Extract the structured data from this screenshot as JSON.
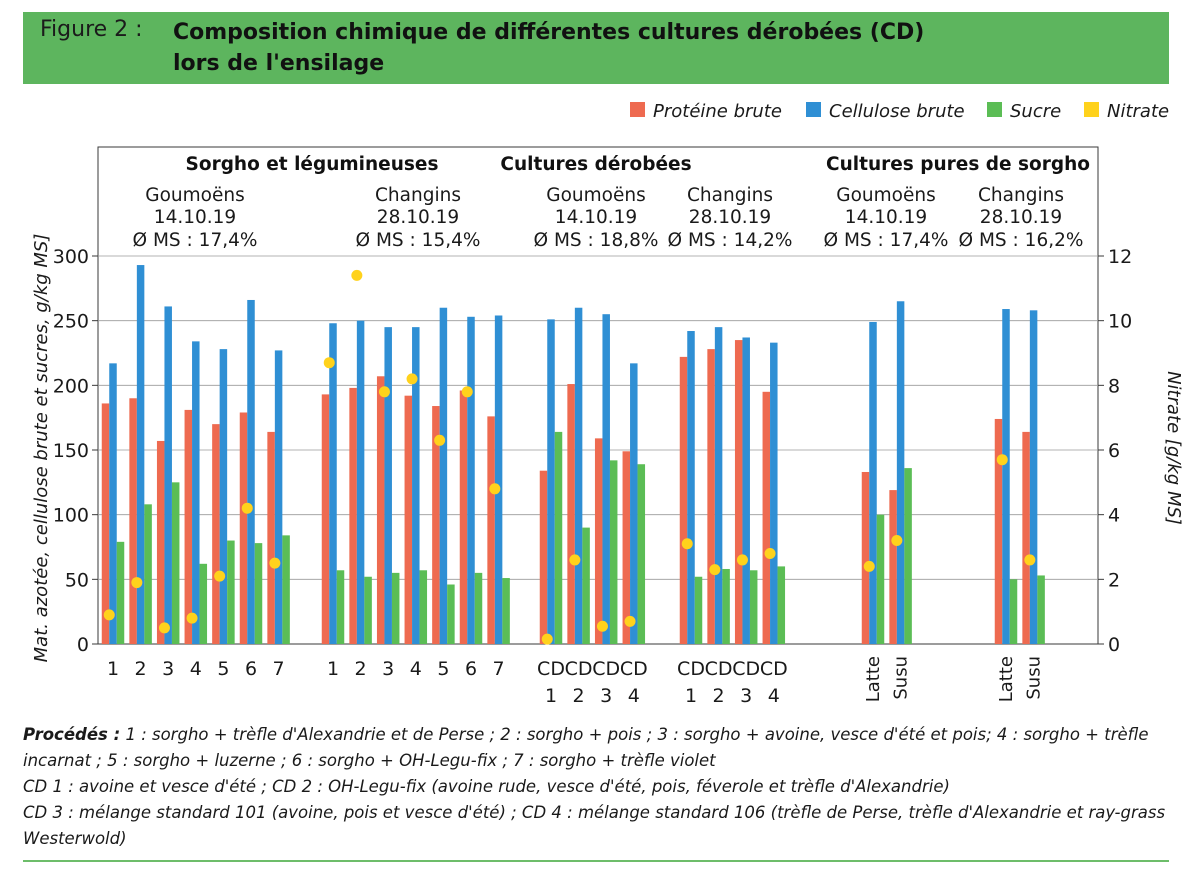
{
  "header": {
    "figure_label": "Figure 2 :",
    "title_line1": "Composition chimique de différentes cultures dérobées (CD)",
    "title_line2": "lors de l'ensilage"
  },
  "notes": {
    "procedes_label": "Procédés :",
    "procedes_text": " 1 : sorgho + trèfle d'Alexandrie et de Perse ; 2 : sorgho + pois ; 3 : sorgho + avoine, vesce d'été et pois; 4 : sorgho + trèfle incarnat ; 5 : sorgho + luzerne ; 6 : sorgho + OH-Legu-fix ; 7 : sorgho + trèfle violet",
    "cd_line1": "CD 1 : avoine et vesce d'été ; CD 2 : OH-Legu-fix (avoine rude, vesce d'été, pois, féverole et trèfle d'Alexandrie)",
    "cd_line2": "CD 3 : mélange standard 101 (avoine, pois et vesce d'été) ; CD 4 : mélange standard 106 (trèfle de Perse, trèfle d'Alexandrie et ray-grass Westerwold)"
  },
  "chart_data": {
    "type": "bar",
    "ylabel": "Mat. azotée, cellulose brute et sucres, g/kg MS]",
    "y2label": "Nitrate [g/kg MS]",
    "ylim": [
      0,
      300
    ],
    "yticks": [
      0,
      50,
      100,
      150,
      200,
      250,
      300
    ],
    "y2lim": [
      0,
      12
    ],
    "y2ticks": [
      0,
      2,
      4,
      6,
      8,
      10,
      12
    ],
    "grid": true,
    "legend_position": "top-right",
    "series": [
      {
        "name": "Protéine brute",
        "color": "#ee6a50"
      },
      {
        "name": "Cellulose brute",
        "color": "#2f8fd4"
      },
      {
        "name": "Sucre",
        "color": "#5bbd55"
      },
      {
        "name": "Nitrate",
        "color": "#ffd21c"
      }
    ],
    "section_titles": [
      "Sorgho et légumineuses",
      "Cultures dérobées",
      "Cultures pures de sorgho"
    ],
    "groups": [
      {
        "site": "Goumoëns",
        "date": "14.10.19",
        "ms": "Ø MS : 17,4%",
        "categories": [
          "1",
          "2",
          "3",
          "4",
          "5",
          "6",
          "7"
        ],
        "proteine": [
          186,
          190,
          157,
          181,
          170,
          179,
          164
        ],
        "cellulose": [
          217,
          293,
          261,
          234,
          228,
          266,
          227
        ],
        "sucre": [
          79,
          108,
          125,
          62,
          80,
          78,
          84
        ],
        "nitrate": [
          0.9,
          1.9,
          0.5,
          0.8,
          2.1,
          4.2,
          2.5
        ]
      },
      {
        "site": "Changins",
        "date": "28.10.19",
        "ms": "Ø MS : 15,4%",
        "categories": [
          "1",
          "2",
          "3",
          "4",
          "5",
          "6",
          "7"
        ],
        "proteine": [
          193,
          198,
          207,
          192,
          184,
          196,
          176
        ],
        "cellulose": [
          248,
          250,
          245,
          245,
          260,
          253,
          254
        ],
        "sucre": [
          57,
          52,
          55,
          57,
          46,
          55,
          51
        ],
        "nitrate": [
          8.7,
          11.4,
          7.8,
          8.2,
          6.3,
          7.8,
          4.8
        ]
      },
      {
        "site": "Goumoëns",
        "date": "14.10.19",
        "ms": "Ø MS : 18,8%",
        "categories": [
          "CD\n1",
          "CD\n2",
          "CD\n3",
          "CD\n4"
        ],
        "proteine": [
          134,
          201,
          159,
          149
        ],
        "cellulose": [
          251,
          260,
          255,
          217
        ],
        "sucre": [
          164,
          90,
          142,
          139
        ],
        "nitrate": [
          0.15,
          2.6,
          0.55,
          0.7
        ]
      },
      {
        "site": "Changins",
        "date": "28.10.19",
        "ms": "Ø MS : 14,2%",
        "categories": [
          "CD\n1",
          "CD\n2",
          "CD\n3",
          "CD\n4"
        ],
        "proteine": [
          222,
          228,
          235,
          195
        ],
        "cellulose": [
          242,
          245,
          237,
          233
        ],
        "sucre": [
          52,
          58,
          57,
          60
        ],
        "nitrate": [
          3.1,
          2.3,
          2.6,
          2.8
        ]
      },
      {
        "site": "Goumoëns",
        "date": "14.10.19",
        "ms": "Ø MS : 17,4%",
        "categories": [
          "Latte",
          "Susu"
        ],
        "proteine": [
          133,
          119
        ],
        "cellulose": [
          249,
          265
        ],
        "sucre": [
          100,
          136
        ],
        "nitrate": [
          2.4,
          3.2
        ]
      },
      {
        "site": "Changins",
        "date": "28.10.19",
        "ms": "Ø MS : 16,2%",
        "categories": [
          "Latte",
          "Susu"
        ],
        "proteine": [
          174,
          164
        ],
        "cellulose": [
          259,
          258
        ],
        "sucre": [
          50,
          53
        ],
        "nitrate": [
          5.7,
          2.6
        ]
      }
    ]
  }
}
